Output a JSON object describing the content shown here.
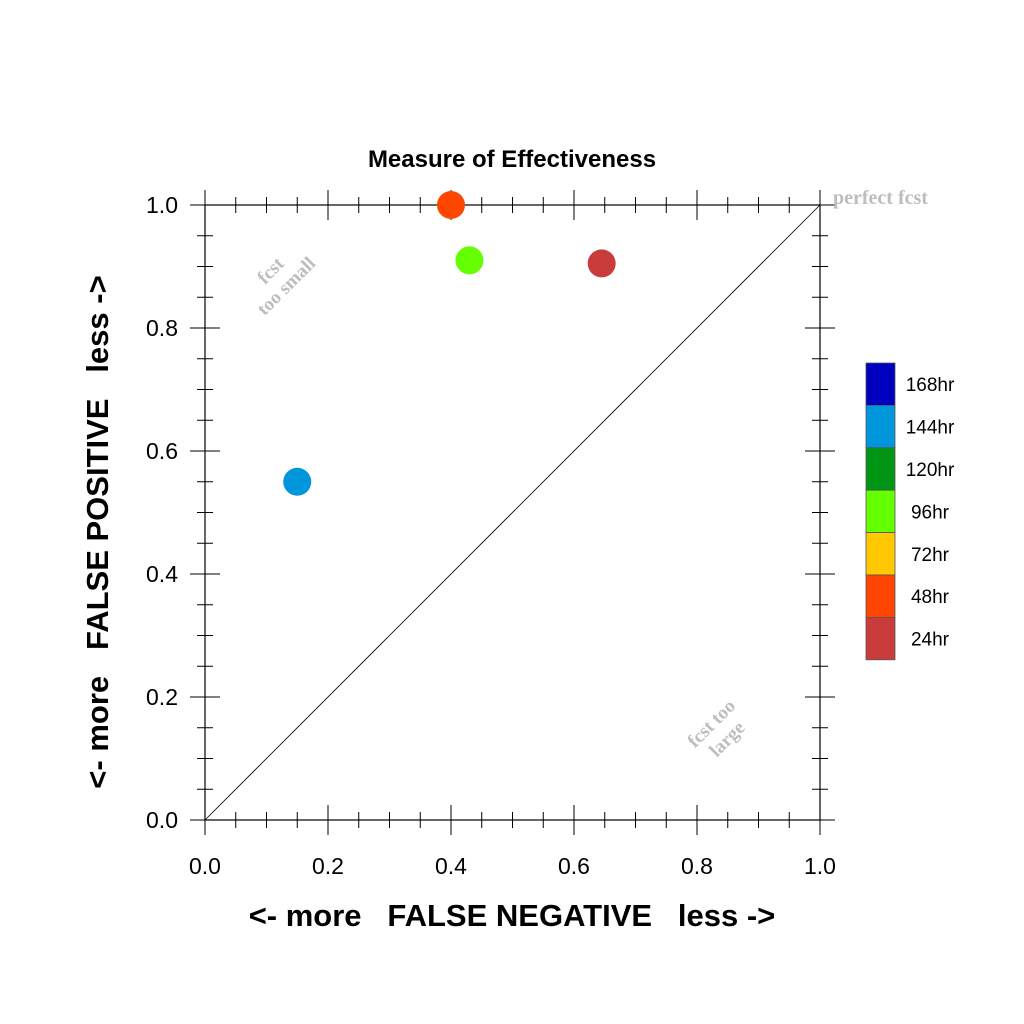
{
  "chart_data": {
    "type": "scatter",
    "title": "Measure of Effectiveness",
    "xlabel": "<- more   FALSE NEGATIVE   less ->",
    "ylabel": "<- more   FALSE POSITIVE   less ->",
    "xlim": [
      0.0,
      1.0
    ],
    "ylim": [
      0.0,
      1.0
    ],
    "x_ticks": [
      "0.0",
      "0.2",
      "0.4",
      "0.6",
      "0.8",
      "1.0"
    ],
    "y_ticks": [
      "0.0",
      "0.2",
      "0.4",
      "0.6",
      "0.8",
      "1.0"
    ],
    "annotations": {
      "perfect": "perfect fcst",
      "small_1": "fcst",
      "small_2": "too small",
      "large_1": "fcst too",
      "large_2": "large"
    },
    "legend": [
      {
        "label": "168hr",
        "color": "#0000c0"
      },
      {
        "label": "144hr",
        "color": "#0096dc"
      },
      {
        "label": "120hr",
        "color": "#009614"
      },
      {
        "label": "96hr",
        "color": "#64ff00"
      },
      {
        "label": "72hr",
        "color": "#ffc800"
      },
      {
        "label": "48hr",
        "color": "#ff4600"
      },
      {
        "label": "24hr",
        "color": "#c83c3c"
      }
    ],
    "points": [
      {
        "series": "144hr",
        "x": 0.15,
        "y": 0.55,
        "color": "#0096dc"
      },
      {
        "series": "96hr",
        "x": 0.43,
        "y": 0.91,
        "color": "#64ff00"
      },
      {
        "series": "48hr",
        "x": 0.4,
        "y": 1.0,
        "color": "#ff4600"
      },
      {
        "series": "24hr",
        "x": 0.645,
        "y": 0.905,
        "color": "#c83c3c"
      }
    ]
  }
}
